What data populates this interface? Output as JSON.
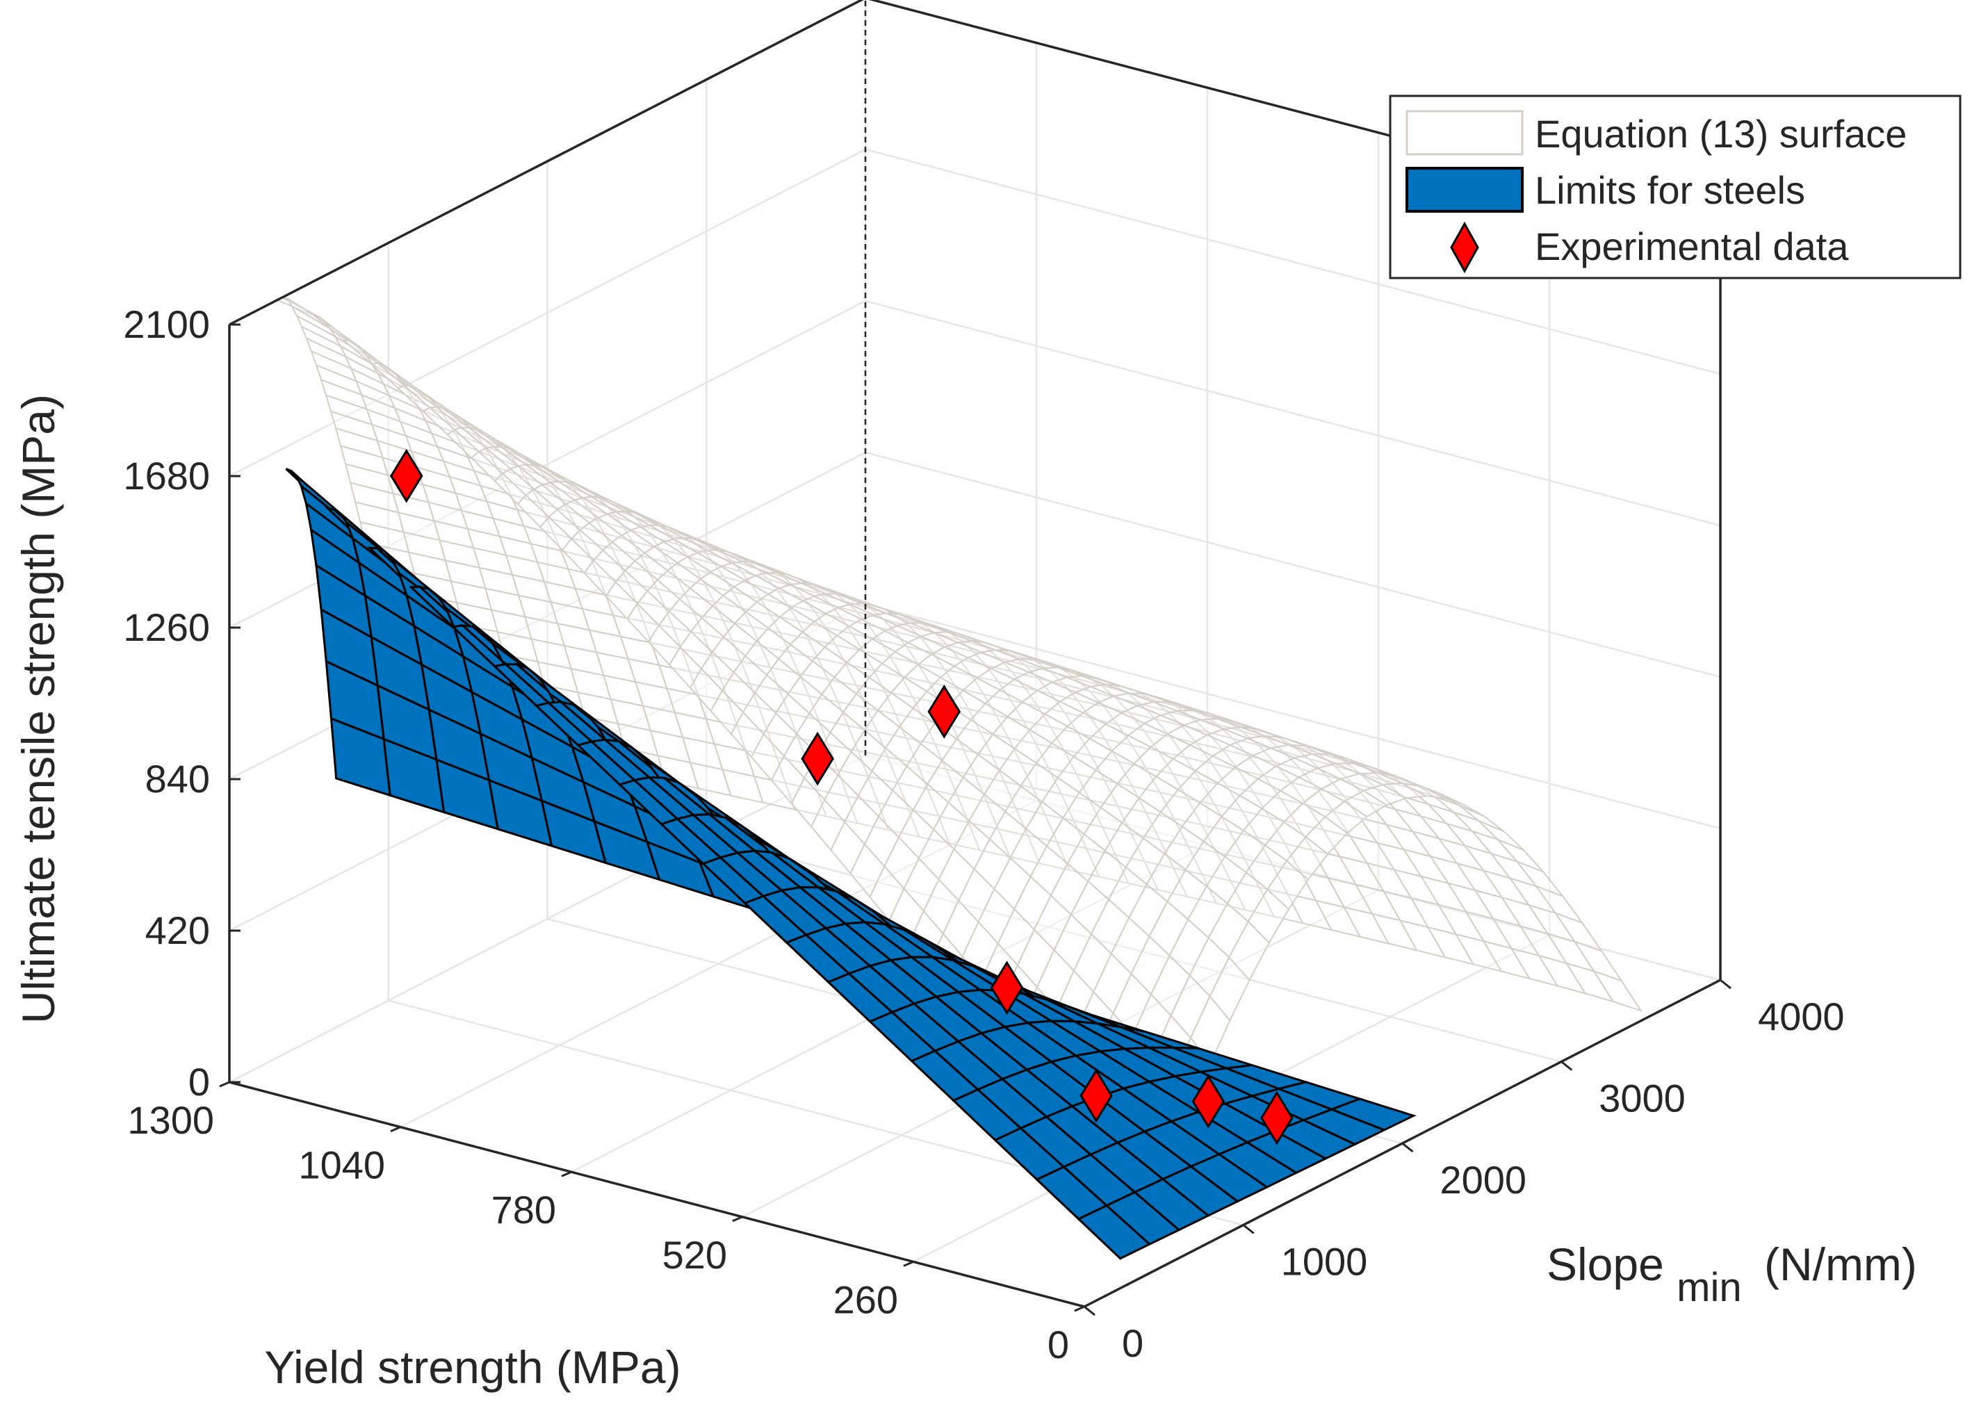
{
  "chart_data": {
    "type": "surface3d",
    "title": "",
    "axes": {
      "x": {
        "label": "Yield strength (MPa)",
        "range": [
          0,
          1300
        ],
        "ticks": [
          "0",
          "260",
          "520",
          "780",
          "1040",
          "1300"
        ]
      },
      "y": {
        "label_main": "Slope",
        "label_sub": "min",
        "label_unit": "(N/mm)",
        "range": [
          0,
          4000
        ],
        "ticks": [
          "0",
          "1000",
          "2000",
          "3000",
          "4000"
        ]
      },
      "z": {
        "label": "Ultimate tensile strength (MPa)",
        "range": [
          0,
          2100
        ],
        "ticks": [
          "0",
          "420",
          "840",
          "1260",
          "1680",
          "2100"
        ]
      }
    },
    "grid": true,
    "legend": {
      "position": "top-right",
      "entries": [
        {
          "label": "Equation (13) surface",
          "style": "surface",
          "color": "#ffffff",
          "edge": "#d4d0c8"
        },
        {
          "label": "Limits for steels",
          "style": "surface",
          "color": "#0072bd",
          "edge": "#000000"
        },
        {
          "label": "Experimental data",
          "style": "diamond-marker",
          "color": "#ff0000",
          "edge": "#000000"
        }
      ]
    },
    "series": [
      {
        "name": "Experimental data",
        "points": [
          {
            "yield": 1200,
            "slope": 700,
            "uts": 1570
          },
          {
            "yield": 720,
            "slope": 1300,
            "uts": 880
          },
          {
            "yield": 600,
            "slope": 1600,
            "uts": 1000
          },
          {
            "yield": 420,
            "slope": 1250,
            "uts": 400
          },
          {
            "yield": 260,
            "slope": 1150,
            "uts": 200
          },
          {
            "yield": 150,
            "slope": 1400,
            "uts": 180
          },
          {
            "yield": 70,
            "slope": 1500,
            "uts": 150
          }
        ]
      }
    ]
  }
}
